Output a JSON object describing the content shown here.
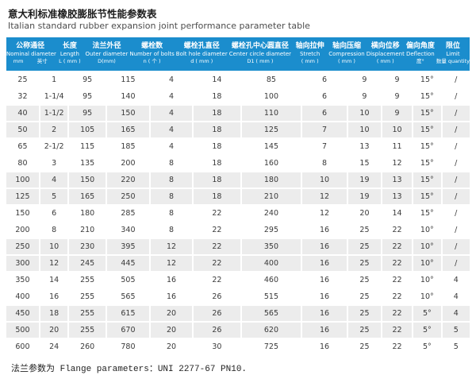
{
  "page": {
    "title_cn": "意大利标准橡胶膨胀节性能参数表",
    "title_en": "Italian standard rubber expansion joint performance parameter table",
    "footer_note": "法兰参数为 Flange parameters：UNI 2277-67 PN10."
  },
  "colors": {
    "header_bg": "#1b8dcd",
    "header_text": "#ffffff",
    "row_shaded_bg": "#ececec",
    "row_plain_bg": "#ffffff",
    "body_text": "#3a3a3a"
  },
  "table": {
    "nominal_header": {
      "cn": "公称通径",
      "en": "Nominal diameter",
      "unit_left": "mm",
      "unit_right": "英寸"
    },
    "columns": [
      {
        "key": "length",
        "cn": "长度",
        "en": "Length",
        "unit": "L ( mm )"
      },
      {
        "key": "outer-diameter",
        "cn": "法兰外径",
        "en": "Outer diameter",
        "unit": "D(mm)"
      },
      {
        "key": "bolts",
        "cn": "螺栓数",
        "en": "Number of bolts",
        "unit": "n ( 个 )"
      },
      {
        "key": "bolt-hole",
        "cn": "螺栓孔直径",
        "en": "Bolt hole diameter",
        "unit": "d ( mm )"
      },
      {
        "key": "center-circle",
        "cn": "螺栓孔中心圆直径",
        "en": "Center circle diameter",
        "unit": "D1 ( mm )"
      },
      {
        "key": "stretch",
        "cn": "轴向拉伸",
        "en": "Stretch",
        "unit": "( mm )"
      },
      {
        "key": "compression",
        "cn": "轴向压缩",
        "en": "Compression",
        "unit": "( mm )"
      },
      {
        "key": "displacement",
        "cn": "横向位移",
        "en": "Displacement",
        "unit": "( mm )"
      },
      {
        "key": "deflection",
        "cn": "偏向角度",
        "en": "Deflection",
        "unit": "度°"
      },
      {
        "key": "limit",
        "cn": "限位",
        "en": "Limit",
        "unit": "数量 quantity"
      }
    ],
    "cell_keys": [
      "nominal-mm",
      "nominal-inch",
      "length",
      "outer-diameter",
      "bolts",
      "bolt-hole",
      "center-circle",
      "stretch",
      "compression",
      "displacement",
      "deflection",
      "limit"
    ],
    "rows": [
      [
        "25",
        "1",
        "95",
        "115",
        "4",
        "14",
        "85",
        "6",
        "9",
        "9",
        "15°",
        "/"
      ],
      [
        "32",
        "1-1/4",
        "95",
        "140",
        "4",
        "18",
        "100",
        "6",
        "9",
        "9",
        "15°",
        "/"
      ],
      [
        "40",
        "1-1/2",
        "95",
        "150",
        "4",
        "18",
        "110",
        "6",
        "10",
        "9",
        "15°",
        "/"
      ],
      [
        "50",
        "2",
        "105",
        "165",
        "4",
        "18",
        "125",
        "7",
        "10",
        "10",
        "15°",
        "/"
      ],
      [
        "65",
        "2-1/2",
        "115",
        "185",
        "4",
        "18",
        "145",
        "7",
        "13",
        "11",
        "15°",
        "/"
      ],
      [
        "80",
        "3",
        "135",
        "200",
        "8",
        "18",
        "160",
        "8",
        "15",
        "12",
        "15°",
        "/"
      ],
      [
        "100",
        "4",
        "150",
        "220",
        "8",
        "18",
        "180",
        "10",
        "19",
        "13",
        "15°",
        "/"
      ],
      [
        "125",
        "5",
        "165",
        "250",
        "8",
        "18",
        "210",
        "12",
        "19",
        "13",
        "15°",
        "/"
      ],
      [
        "150",
        "6",
        "180",
        "285",
        "8",
        "22",
        "240",
        "12",
        "20",
        "14",
        "15°",
        "/"
      ],
      [
        "200",
        "8",
        "210",
        "340",
        "8",
        "22",
        "295",
        "16",
        "25",
        "22",
        "10°",
        "/"
      ],
      [
        "250",
        "10",
        "230",
        "395",
        "12",
        "22",
        "350",
        "16",
        "25",
        "22",
        "10°",
        "/"
      ],
      [
        "300",
        "12",
        "245",
        "445",
        "12",
        "22",
        "400",
        "16",
        "25",
        "22",
        "10°",
        "/"
      ],
      [
        "350",
        "14",
        "255",
        "505",
        "16",
        "22",
        "460",
        "16",
        "25",
        "22",
        "10°",
        "4"
      ],
      [
        "400",
        "16",
        "255",
        "565",
        "16",
        "26",
        "515",
        "16",
        "25",
        "22",
        "10°",
        "4"
      ],
      [
        "450",
        "18",
        "255",
        "615",
        "20",
        "26",
        "565",
        "16",
        "25",
        "22",
        "5°",
        "4"
      ],
      [
        "500",
        "20",
        "255",
        "670",
        "20",
        "26",
        "620",
        "16",
        "25",
        "22",
        "5°",
        "5"
      ],
      [
        "600",
        "24",
        "260",
        "780",
        "20",
        "30",
        "725",
        "16",
        "25",
        "22",
        "5°",
        "5"
      ]
    ]
  }
}
